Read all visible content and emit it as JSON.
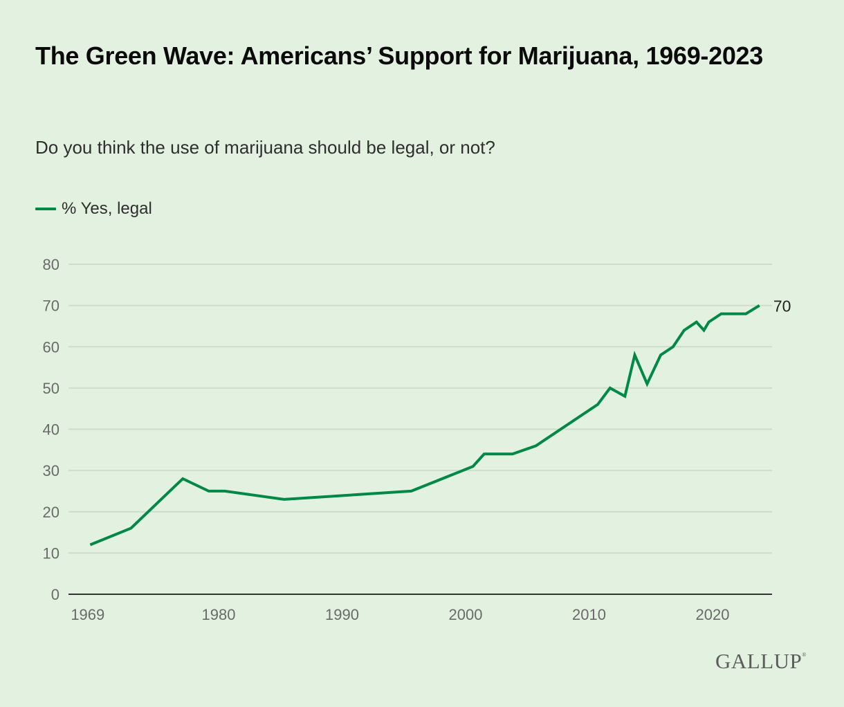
{
  "header": {
    "title": "The Green Wave: Americans’ Support for Marijuana, 1969-2023",
    "subtitle": "Do you think the use of marijuana should be legal, or not?"
  },
  "legend": {
    "items": [
      {
        "label": "% Yes, legal",
        "color": "#008846"
      }
    ]
  },
  "branding": {
    "logo_text": "GALLUP",
    "logo_mark": "®"
  },
  "chart_data": {
    "type": "line",
    "title": "The Green Wave: Americans’ Support for Marijuana, 1969-2023",
    "subtitle": "Do you think the use of marijuana should be legal, or not?",
    "xlabel": "",
    "ylabel": "",
    "ylim": [
      0,
      80
    ],
    "xlim": [
      1967.9,
      2024.8
    ],
    "y_ticks": [
      0,
      10,
      20,
      30,
      40,
      50,
      60,
      70,
      80
    ],
    "x_ticks": [
      {
        "label": "1969",
        "value": 1969.4
      },
      {
        "label": "1980",
        "value": 1980
      },
      {
        "label": "1990",
        "value": 1990
      },
      {
        "label": "2000",
        "value": 2000
      },
      {
        "label": "2010",
        "value": 2010
      },
      {
        "label": "2020",
        "value": 2020
      }
    ],
    "grid": true,
    "legend_position": "top-left",
    "series": [
      {
        "name": "% Yes, legal",
        "color": "#008846",
        "x": [
          1969.6,
          1972.9,
          1977.1,
          1979.2,
          1980.5,
          1985.3,
          1995.6,
          2000.6,
          2001.5,
          2003.8,
          2005.7,
          2010.7,
          2011.7,
          2012.9,
          2013.7,
          2014.7,
          2015.8,
          2016.8,
          2017.7,
          2018.7,
          2019.3,
          2019.7,
          2020.7,
          2022.7,
          2023.8
        ],
        "values": [
          12,
          16,
          28,
          25,
          25,
          23,
          25,
          31,
          34,
          34,
          36,
          46,
          50,
          48,
          58,
          51,
          58,
          60,
          64,
          66,
          64,
          66,
          68,
          68,
          70
        ],
        "end_label": "70"
      }
    ]
  }
}
